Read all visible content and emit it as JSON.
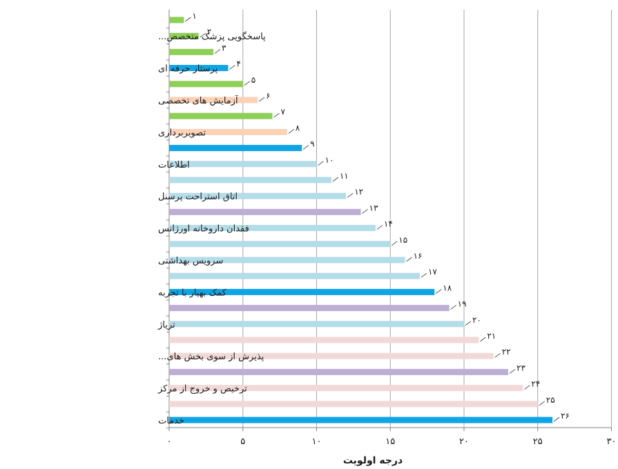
{
  "chart_data": {
    "type": "bar",
    "orientation": "horizontal",
    "xlabel": "درجه اولویت",
    "xlim": [
      0,
      30
    ],
    "x_ticks": [
      "۰",
      "۵",
      "۱۰",
      "۱۵",
      "۲۰",
      "۲۵",
      "۳۰"
    ],
    "grid": "vertical",
    "categories": [
      "",
      "پاسخگویی پزشک متخصص...",
      "",
      "پرستار حرفه ای",
      "",
      "آزمایش های تخصصی",
      "",
      "تصویربرداری",
      "",
      "اطلاعات",
      "",
      "اتاق استراحت پرسنل",
      "",
      "فقدان داروخانه اورژانس",
      "",
      "سرویس بهداشتی",
      "",
      "کمک بهیار با تجربه",
      "",
      "ترياژ",
      "",
      "پذیرش از سوی بخش های...",
      "",
      "ترخیص و خروج از مرکز",
      "",
      "خدمات"
    ],
    "values": [
      1,
      2,
      3,
      4,
      5,
      6,
      7,
      8,
      9,
      10,
      11,
      12,
      13,
      14,
      15,
      16,
      17,
      18,
      19,
      20,
      21,
      22,
      23,
      24,
      25,
      26
    ],
    "value_labels": [
      "۱",
      "۲",
      "۳",
      "۴",
      "۵",
      "۶",
      "۷",
      "۸",
      "۹",
      "۱۰",
      "۱۱",
      "۱۲",
      "۱۳",
      "۱۴",
      "۱۵",
      "۱۶",
      "۱۷",
      "۱۸",
      "۱۹",
      "۲۰",
      "۲۱",
      "۲۲",
      "۲۳",
      "۲۴",
      "۲۵",
      "۲۶"
    ],
    "bar_colors": [
      "#8fcf57",
      "#8fcf57",
      "#8fcf57",
      "#0ea5e6",
      "#8fcf57",
      "#fad2b6",
      "#8fcf57",
      "#fad2b6",
      "#0ea5e6",
      "#b4dde8",
      "#b4dde8",
      "#b4dde8",
      "#bcaed4",
      "#b4dde8",
      "#b4dde8",
      "#b4dde8",
      "#b4dde8",
      "#0ea5e6",
      "#bcaed4",
      "#b4dde8",
      "#f2d9d9",
      "#f2d9d9",
      "#bcaed4",
      "#f2d9d9",
      "#f2d9d9",
      "#0ea5e6"
    ]
  }
}
